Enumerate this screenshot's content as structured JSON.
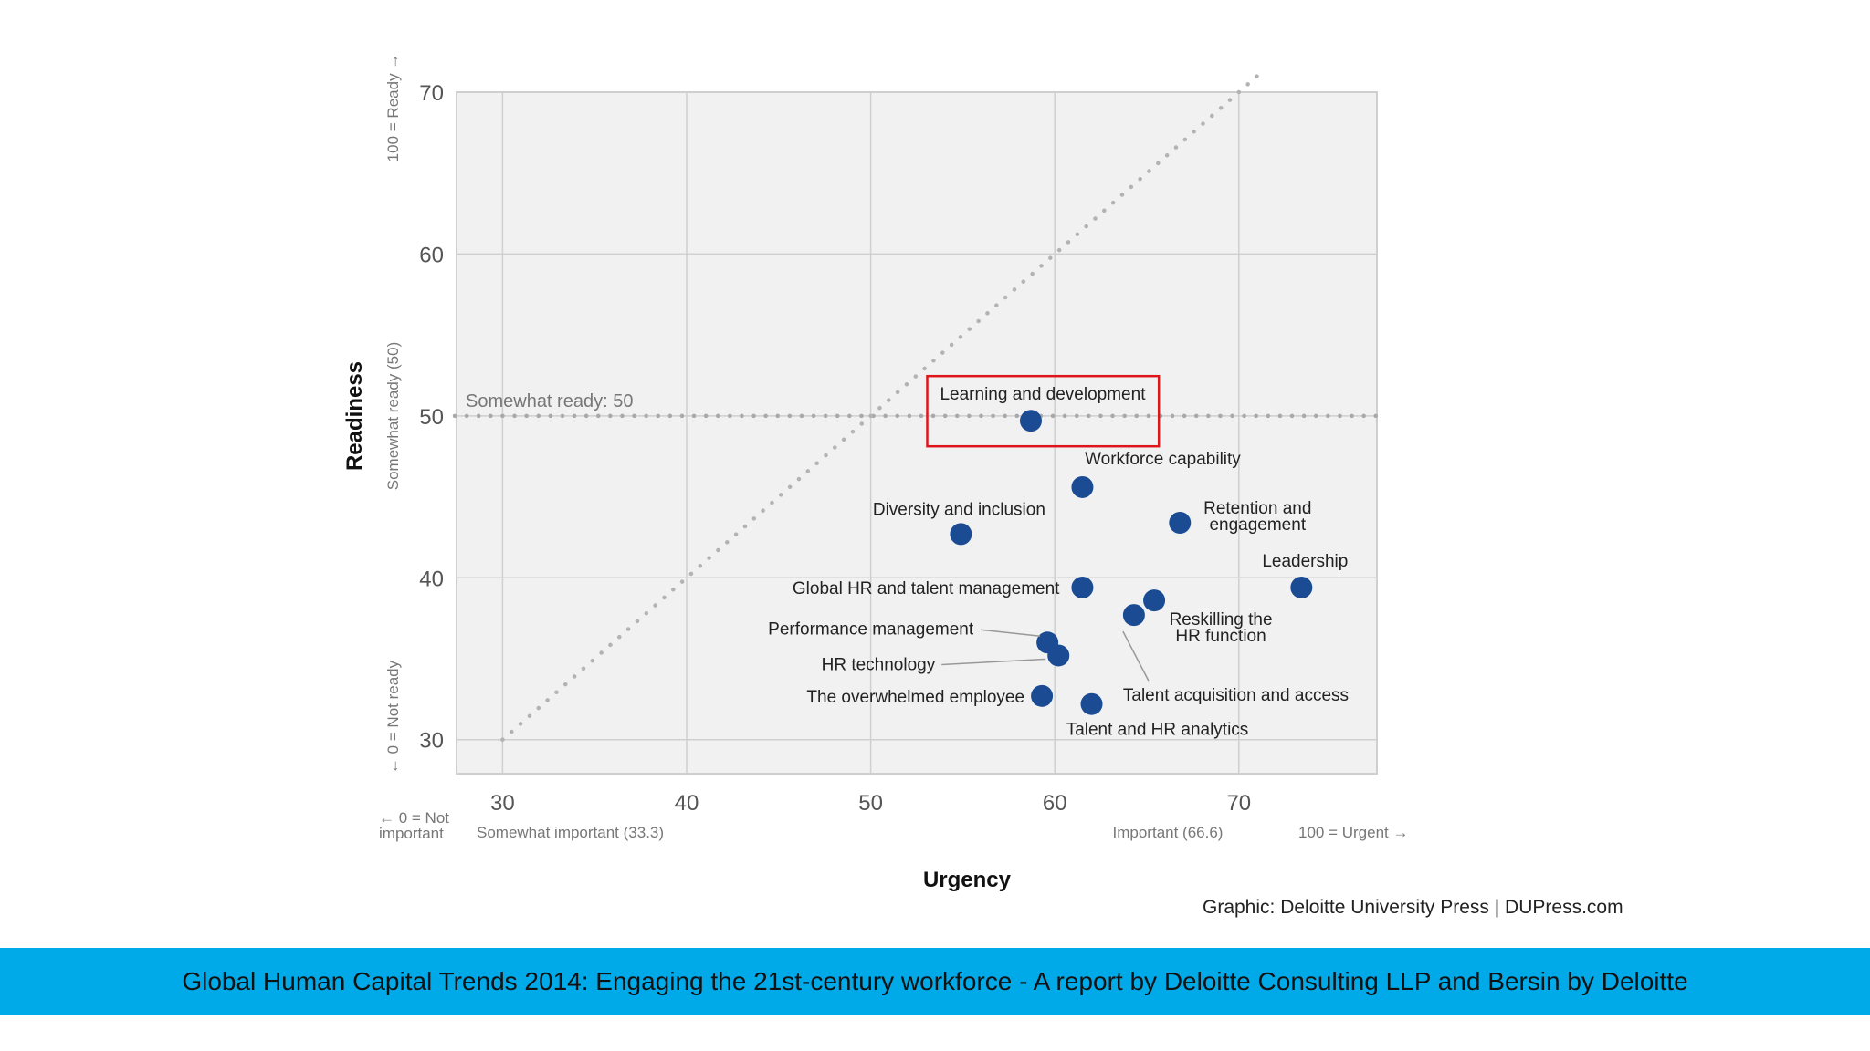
{
  "chart_data": {
    "type": "scatter",
    "title": "",
    "xlabel": "Urgency",
    "ylabel": "Readiness",
    "xlim": [
      27.5,
      77.5
    ],
    "ylim": [
      27.9,
      70
    ],
    "xticks": [
      30,
      40,
      50,
      60,
      70
    ],
    "yticks": [
      30,
      40,
      50,
      60,
      70
    ],
    "grid": true,
    "x_sub_labels": [
      {
        "text": "← 0 = Not",
        "text2": "important"
      },
      {
        "text": "Somewhat important (33.3)"
      },
      {
        "text": "Important (66.6)"
      },
      {
        "text": "100 = Urgent →"
      }
    ],
    "y_sub_labels": {
      "top": "100 = Ready →",
      "middle": "Somewhat ready (50)",
      "bottom": "← 0 = Not ready"
    },
    "reference_line": {
      "y": 50,
      "label": "Somewhat ready: 50"
    },
    "diagonal_line": {
      "from": [
        30,
        30
      ],
      "to": [
        71.3,
        71.3
      ]
    },
    "highlight": "Learning and development",
    "point_color": "#1a4b93",
    "highlight_color": "#e0141b",
    "points": [
      {
        "label": "Learning and development",
        "x": 58.7,
        "y": 49.7
      },
      {
        "label": "Workforce capability",
        "x": 61.5,
        "y": 45.6
      },
      {
        "label": "Diversity and inclusion",
        "x": 54.9,
        "y": 42.7
      },
      {
        "label": "Retention and engagement",
        "x": 66.8,
        "y": 43.4
      },
      {
        "label": "Leadership",
        "x": 73.4,
        "y": 39.4
      },
      {
        "label": "Global HR and talent management",
        "x": 61.5,
        "y": 39.4
      },
      {
        "label": "Reskilling the HR function",
        "x": 65.4,
        "y": 38.6
      },
      {
        "label": "Talent acquisition and access",
        "x": 64.3,
        "y": 37.7
      },
      {
        "label": "Performance management",
        "x": 59.6,
        "y": 36.0
      },
      {
        "label": "HR technology",
        "x": 60.2,
        "y": 35.2
      },
      {
        "label": "The overwhelmed employee",
        "x": 59.3,
        "y": 32.7
      },
      {
        "label": "Talent and HR analytics",
        "x": 62.0,
        "y": 32.2
      }
    ]
  },
  "credit": "Graphic: Deloitte University Press  |  DUPress.com",
  "footer": "Global Human Capital Trends 2014: Engaging the 21st-century workforce - A report by Deloitte Consulting LLP and Bersin by Deloitte"
}
